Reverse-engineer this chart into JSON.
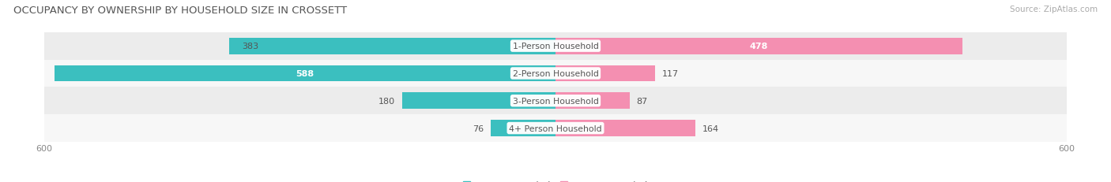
{
  "title": "OCCUPANCY BY OWNERSHIP BY HOUSEHOLD SIZE IN CROSSETT",
  "source": "Source: ZipAtlas.com",
  "categories": [
    "1-Person Household",
    "2-Person Household",
    "3-Person Household",
    "4+ Person Household"
  ],
  "owner_values": [
    383,
    588,
    180,
    76
  ],
  "renter_values": [
    478,
    117,
    87,
    164
  ],
  "owner_color": "#3bbfbf",
  "renter_color": "#f48fb1",
  "axis_max": 600,
  "row_colors_even": "#ececec",
  "row_colors_odd": "#f7f7f7",
  "label_font_size": 7.8,
  "title_font_size": 9.5,
  "source_font_size": 7.5,
  "value_font_size": 8.0,
  "legend_font_size": 8.5,
  "bar_height": 0.6
}
